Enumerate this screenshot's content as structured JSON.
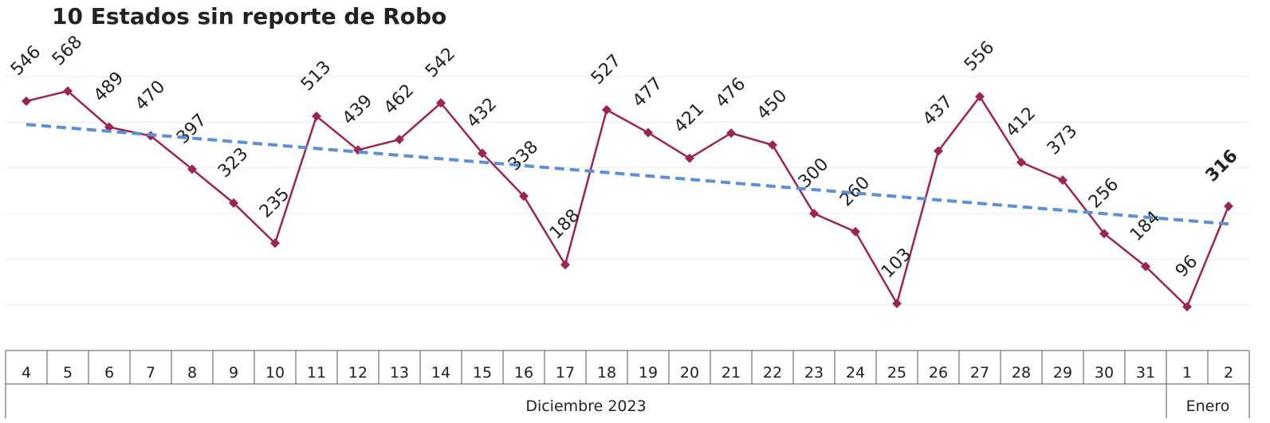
{
  "chart_data": {
    "type": "line",
    "title": "10 Estados sin reporte de Robo",
    "categories": [
      "4",
      "5",
      "6",
      "7",
      "8",
      "9",
      "10",
      "11",
      "12",
      "13",
      "14",
      "15",
      "16",
      "17",
      "18",
      "19",
      "20",
      "21",
      "22",
      "23",
      "24",
      "25",
      "26",
      "27",
      "28",
      "29",
      "30",
      "31",
      "1",
      "2"
    ],
    "groups": [
      {
        "label": "Diciembre 2023",
        "span": 28
      },
      {
        "label": "Enero",
        "span": 2
      }
    ],
    "series": [
      {
        "color": "#9b2453",
        "values": [
          546,
          568,
          489,
          470,
          397,
          323,
          235,
          513,
          439,
          462,
          542,
          432,
          338,
          188,
          527,
          477,
          421,
          476,
          450,
          300,
          260,
          103,
          437,
          556,
          412,
          373,
          256,
          184,
          96,
          316
        ]
      }
    ],
    "trend": {
      "color": "#5b8fd6",
      "values": [
        495,
        277
      ]
    },
    "ylim": [
      0,
      600
    ],
    "yticks": [
      100,
      200,
      300,
      400,
      500,
      600
    ],
    "grid": true
  }
}
